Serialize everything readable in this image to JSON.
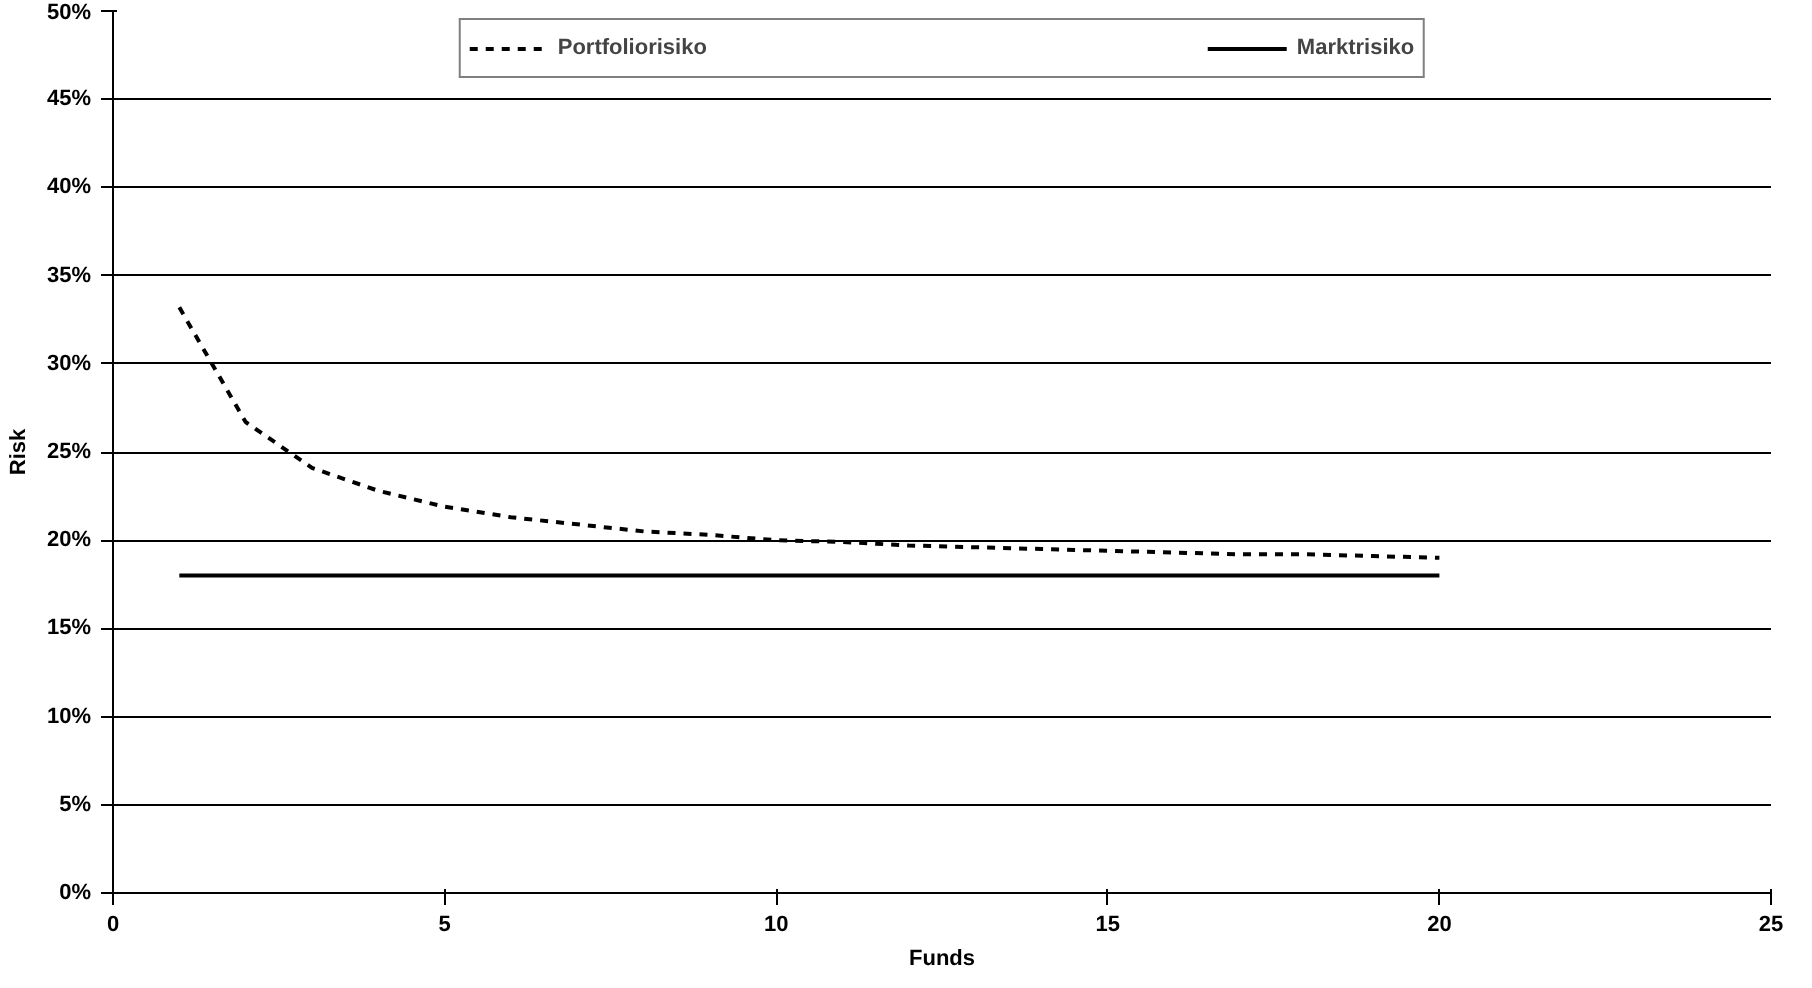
{
  "chart_data": {
    "type": "line",
    "xlabel": "Funds",
    "ylabel": "Risk",
    "series": [
      {
        "name": "Portfoliorisiko",
        "color": "#000000",
        "line_style": "dashed",
        "x": [
          1,
          2,
          3,
          4,
          5,
          6,
          7,
          8,
          9,
          10,
          11,
          12,
          13,
          14,
          15,
          16,
          17,
          18,
          19,
          20
        ],
        "values": [
          33.2,
          26.7,
          24.1,
          22.8,
          21.9,
          21.3,
          20.9,
          20.5,
          20.3,
          20.0,
          19.9,
          19.7,
          19.6,
          19.5,
          19.4,
          19.3,
          19.2,
          19.2,
          19.1,
          19.0
        ]
      },
      {
        "name": "Marktrisiko",
        "color": "#000000",
        "line_style": "solid",
        "x": [
          1,
          20
        ],
        "values": [
          18,
          18
        ]
      }
    ],
    "xlim": [
      0,
      25
    ],
    "xticks": [
      0,
      5,
      10,
      15,
      20,
      25
    ],
    "ylim": [
      0,
      50
    ],
    "yticks": [
      {
        "value": 0,
        "label": "0%"
      },
      {
        "value": 5,
        "label": "5%"
      },
      {
        "value": 10,
        "label": "10%"
      },
      {
        "value": 15,
        "label": "15%"
      },
      {
        "value": 20,
        "label": "20%"
      },
      {
        "value": 25,
        "label": "25%"
      },
      {
        "value": 30,
        "label": "30%"
      },
      {
        "value": 35,
        "label": "35%"
      },
      {
        "value": 40,
        "label": "40%"
      },
      {
        "value": 45,
        "label": "45%"
      },
      {
        "value": 50,
        "label": "50%"
      }
    ],
    "grid": "y",
    "legend": "top",
    "marker": "none"
  }
}
